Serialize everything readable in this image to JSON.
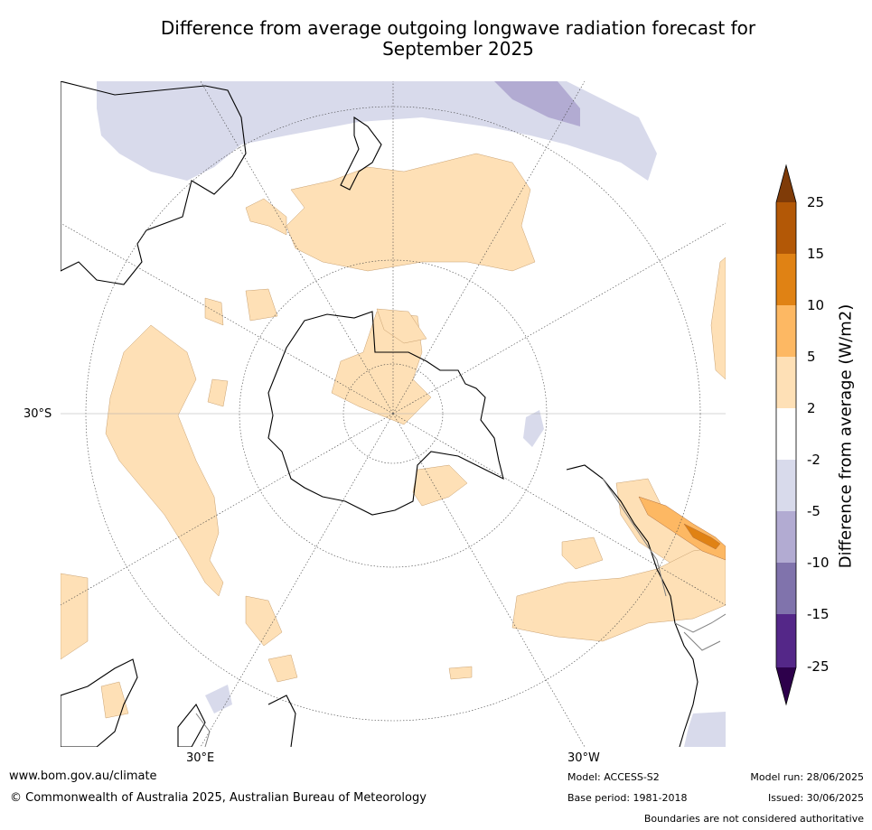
{
  "title": {
    "line1": "Difference from average outgoing longwave radiation forecast for",
    "line2": "September 2025"
  },
  "map": {
    "projection": "south-polar-stereographic",
    "latitude_labels": [
      "30°S"
    ],
    "longitude_labels": [
      "30°E",
      "30°W"
    ],
    "colors": {
      "coast": "#000000",
      "boundary": "#808080",
      "grid": "#444444"
    }
  },
  "colorbar": {
    "title": "Difference from average (W/m2)",
    "levels": [
      "25",
      "15",
      "10",
      "5",
      "2",
      "-2",
      "-5",
      "-10",
      "-15",
      "-25"
    ],
    "bins": [
      {
        "range": ">25",
        "color": "#7f3b08"
      },
      {
        "range": "15 to 25",
        "color": "#b35806"
      },
      {
        "range": "10 to 15",
        "color": "#e08214"
      },
      {
        "range": "5 to 10",
        "color": "#fdb863"
      },
      {
        "range": "2 to 5",
        "color": "#fee0b6"
      },
      {
        "range": "-2 to 2",
        "color": "#ffffff"
      },
      {
        "range": "-5 to -2",
        "color": "#d8daeb"
      },
      {
        "range": "-10 to -5",
        "color": "#b2abd2"
      },
      {
        "range": "-15 to -10",
        "color": "#8073ac"
      },
      {
        "range": "-25 to -15",
        "color": "#542788"
      },
      {
        "range": "<-25",
        "color": "#2d004b"
      }
    ]
  },
  "footer": {
    "website": "www.bom.gov.au/climate",
    "copyright": "© Commonwealth of Australia 2025, Australian Bureau of Meteorology",
    "model": "Model: ACCESS-S2",
    "base_period": "Base period: 1981-2018",
    "model_run": "Model run: 28/06/2025",
    "issued": "Issued: 30/06/2025",
    "disclaimer": "Boundaries are not considered authoritative"
  }
}
